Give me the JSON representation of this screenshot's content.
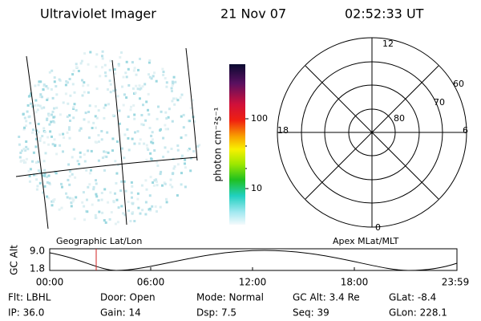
{
  "header": {
    "instrument": "Ultraviolet Imager",
    "date": "21 Nov 07",
    "time": "02:52:33 UT"
  },
  "colorbar": {
    "label": "photon cm⁻²s⁻¹",
    "ticks": [
      "100",
      "10"
    ]
  },
  "polar": {
    "mlt_labels": [
      "12",
      "18",
      "6",
      "0"
    ],
    "mlat_labels": [
      "60",
      "70",
      "80"
    ]
  },
  "orbit": {
    "left_title": "Geographic Lat/Lon",
    "right_title": "Apex MLat/MLT",
    "y_label": "GC Alt",
    "y_ticks": [
      "9.0",
      "1.8"
    ],
    "x_ticks": [
      "00:00",
      "06:00",
      "12:00",
      "18:00",
      "23:59"
    ]
  },
  "status": {
    "rows": [
      [
        "Flt: LBHL",
        "Door: Open",
        "Mode: Normal",
        "GC Alt: 3.4 Re",
        "GLat: -8.4"
      ],
      [
        "IP: 36.0",
        "Gain: 14",
        "Dsp: 7.5",
        "Seq: 39",
        "GLon: 228.1"
      ]
    ]
  }
}
